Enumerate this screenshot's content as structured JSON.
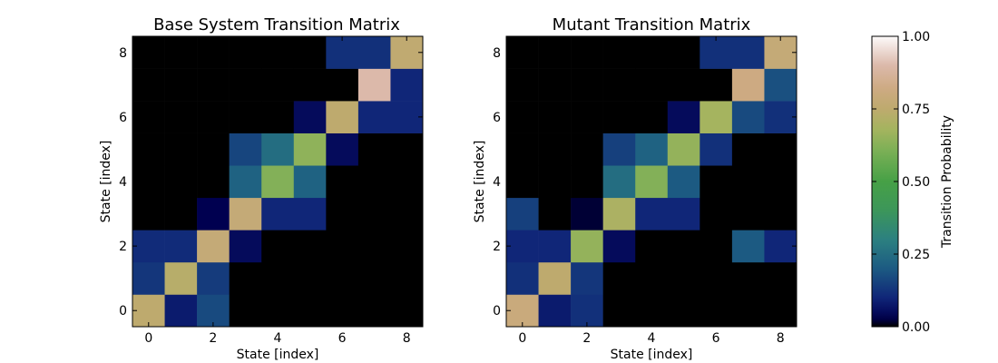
{
  "chart_data": [
    {
      "type": "heatmap",
      "title": "Base System Transition Matrix",
      "xlabel": "State [index]",
      "ylabel": "State [index]",
      "x": [
        0,
        1,
        2,
        3,
        4,
        5,
        6,
        7,
        8
      ],
      "y": [
        0,
        1,
        2,
        3,
        4,
        5,
        6,
        7,
        8
      ],
      "x_ticks": [
        "0",
        "2",
        "4",
        "6",
        "8"
      ],
      "y_ticks": [
        "0",
        "2",
        "4",
        "6",
        "8"
      ],
      "z": [
        [
          0.75,
          0.08,
          0.17,
          0,
          0,
          0,
          0,
          0,
          0
        ],
        [
          0.13,
          0.73,
          0.14,
          0,
          0,
          0,
          0,
          0,
          0
        ],
        [
          0.11,
          0.11,
          0.78,
          0.05,
          0,
          0,
          0,
          0,
          0
        ],
        [
          0,
          0,
          0.03,
          0.78,
          0.1,
          0.1,
          0,
          0,
          0
        ],
        [
          0,
          0,
          0,
          0.22,
          0.62,
          0.22,
          0,
          0,
          0
        ],
        [
          0,
          0,
          0,
          0.16,
          0.25,
          0.64,
          0.05,
          0,
          0
        ],
        [
          0,
          0,
          0,
          0,
          0,
          0.05,
          0.75,
          0.1,
          0.1
        ],
        [
          0,
          0,
          0,
          0,
          0,
          0,
          0,
          0.9,
          0.1
        ],
        [
          0,
          0,
          0,
          0,
          0,
          0,
          0.12,
          0.12,
          0.76
        ]
      ]
    },
    {
      "type": "heatmap",
      "title": "Mutant Transition Matrix",
      "xlabel": "State [index]",
      "ylabel": "State [index]",
      "x": [
        0,
        1,
        2,
        3,
        4,
        5,
        6,
        7,
        8
      ],
      "y": [
        0,
        1,
        2,
        3,
        4,
        5,
        6,
        7,
        8
      ],
      "x_ticks": [
        "0",
        "2",
        "4",
        "6",
        "8"
      ],
      "y_ticks": [
        "0",
        "2",
        "4",
        "6",
        "8"
      ],
      "z": [
        [
          0.8,
          0.08,
          0.12,
          0,
          0,
          0,
          0,
          0,
          0
        ],
        [
          0.12,
          0.75,
          0.13,
          0,
          0,
          0,
          0,
          0,
          0
        ],
        [
          0.1,
          0.1,
          0.65,
          0.05,
          0,
          0,
          0,
          0.2,
          0.1
        ],
        [
          0.15,
          0,
          0.02,
          0.7,
          0.1,
          0.1,
          0,
          0,
          0
        ],
        [
          0,
          0,
          0,
          0.25,
          0.62,
          0.2,
          0,
          0,
          0
        ],
        [
          0,
          0,
          0,
          0.15,
          0.22,
          0.65,
          0.12,
          0,
          0
        ],
        [
          0,
          0,
          0,
          0,
          0,
          0.05,
          0.68,
          0.17,
          0.12
        ],
        [
          0,
          0,
          0,
          0,
          0,
          0,
          0,
          0.82,
          0.18
        ],
        [
          0,
          0,
          0,
          0,
          0,
          0,
          0.12,
          0.12,
          0.78
        ]
      ]
    }
  ],
  "colorbar": {
    "label": "Transition Probability",
    "ticks": [
      "0.00",
      "0.25",
      "0.50",
      "0.75",
      "1.00"
    ],
    "tick_values": [
      0,
      0.25,
      0.5,
      0.75,
      1.0
    ],
    "colormap": "gist_earth",
    "range": [
      0,
      1
    ]
  }
}
